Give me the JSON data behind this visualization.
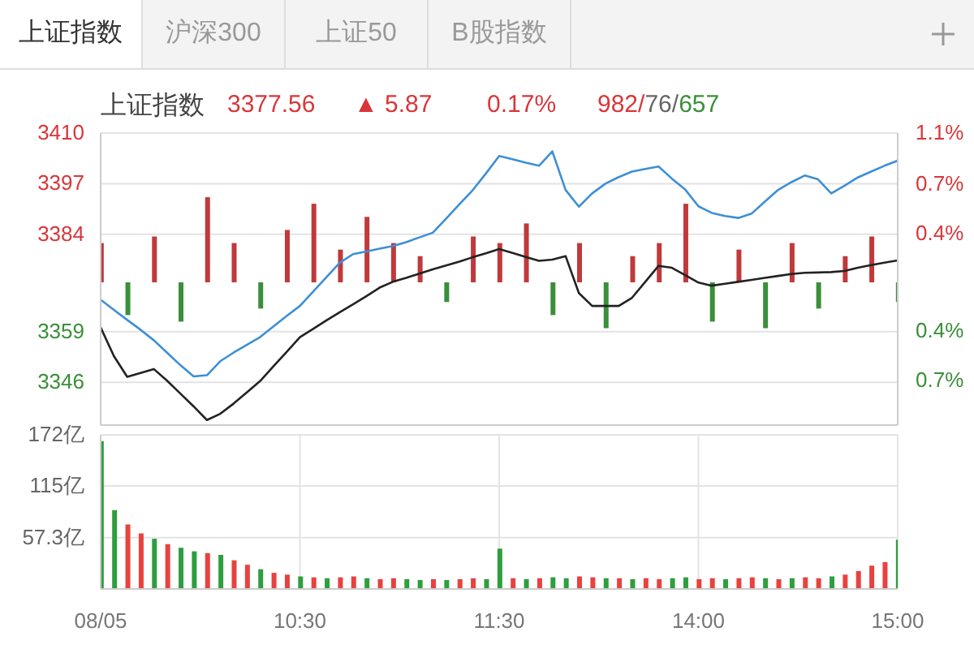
{
  "chart_data": [
    {
      "type": "line",
      "title": "上证指数",
      "annotations": [
        "上证指数",
        "沪深300",
        "上证50",
        "B股指数",
        "3377.56",
        "▲ 5.87",
        "0.17%",
        "982/76/657"
      ],
      "categories": [
        null,
        null,
        null,
        null,
        null,
        null,
        null,
        null,
        null,
        null,
        null,
        null,
        null,
        null,
        null,
        null,
        null,
        null,
        null,
        null,
        null,
        null,
        null,
        null,
        null,
        null,
        null,
        null,
        null,
        null,
        null,
        null,
        null,
        null,
        null,
        null,
        null,
        null,
        null,
        null,
        null,
        null,
        null,
        null,
        null,
        null,
        null,
        null,
        null,
        null,
        null,
        null,
        null,
        null,
        null,
        null,
        null,
        null,
        null,
        null,
        null
      ],
      "series": [
        {
          "type": "bar",
          "axis": "y2",
          "values": [
            0.3,
            null,
            -0.25,
            null,
            0.35,
            null,
            -0.3,
            null,
            0.65,
            null,
            0.3,
            null,
            -0.2,
            null,
            0.4,
            null,
            0.6,
            null,
            0.25,
            null,
            0.5,
            null,
            0.3,
            null,
            0.2,
            null,
            -0.15,
            null,
            0.35,
            null,
            0.3,
            null,
            0.45,
            null,
            -0.25,
            null,
            0.3,
            null,
            -0.35,
            null,
            0.2,
            null,
            0.3,
            null,
            0.6,
            null,
            -0.3,
            null,
            0.25,
            null,
            -0.35,
            null,
            0.3,
            null,
            -0.2,
            null,
            0.2,
            null,
            0.35,
            null,
            -0.15
          ],
          "colors": [
            "#c0393b",
            "#c0393b",
            "#3a8f3a",
            "#3a8f3a",
            "#c0393b",
            "#c0393b",
            "#3a8f3a",
            "#3a8f3a",
            "#c0393b",
            "#c0393b",
            "#c0393b",
            "#c0393b",
            "#3a8f3a",
            "#3a8f3a",
            "#c0393b",
            "#c0393b",
            "#c0393b",
            "#c0393b",
            "#c0393b",
            "#c0393b",
            "#c0393b",
            "#c0393b",
            "#c0393b",
            "#c0393b",
            "#c0393b",
            "#c0393b",
            "#3a8f3a",
            "#3a8f3a",
            "#c0393b",
            "#c0393b",
            "#c0393b",
            "#c0393b",
            "#c0393b",
            "#c0393b",
            "#3a8f3a",
            "#3a8f3a",
            "#c0393b",
            "#c0393b",
            "#3a8f3a",
            "#3a8f3a",
            "#c0393b",
            "#c0393b",
            "#c0393b",
            "#c0393b",
            "#c0393b",
            "#c0393b",
            "#3a8f3a",
            "#3a8f3a",
            "#c0393b",
            "#c0393b",
            "#3a8f3a",
            "#3a8f3a",
            "#c0393b",
            "#c0393b",
            "#3a8f3a",
            "#3a8f3a",
            "#c0393b",
            "#c0393b",
            "#c0393b",
            "#c0393b",
            "#3a8f3a"
          ]
        },
        {
          "color": "#3d8fd6",
          "values": [
            3367.2,
            3364.6,
            3362,
            3359.5,
            3356.8,
            3353.6,
            3350.4,
            3347.5,
            3347.8,
            3351.4,
            3353.6,
            3355.6,
            3357.6,
            3360.3,
            3363,
            3365.6,
            3369.3,
            3373,
            3376.7,
            3378.9,
            3379.6,
            3380.3,
            3381,
            3382,
            3383.2,
            3384.4,
            3388,
            3391.7,
            3395.3,
            3399.6,
            3404.1,
            3403.3,
            3402.4,
            3401.6,
            3405.3,
            3395.4,
            3391.1,
            3394.5,
            3397,
            3398.7,
            3400.1,
            3400.8,
            3401.4,
            3398.3,
            3395.5,
            3391.2,
            3389.5,
            3388.7,
            3388.2,
            3389.3,
            3392.4,
            3395.4,
            3397.4,
            3399.1,
            3398.1,
            3394.5,
            3396.5,
            3398.6,
            3400.1,
            3401.6,
            3402.9
          ]
        },
        {
          "color": "#222222",
          "values": [
            3360.1,
            3352.7,
            3347.4,
            3348.4,
            3349.4,
            3346.4,
            3343.1,
            3339.8,
            3336.3,
            3337.9,
            3340.5,
            3343.4,
            3346.3,
            3350.1,
            3353.8,
            3357.6,
            3359.7,
            3361.9,
            3364,
            3366,
            3368.1,
            3370.3,
            3371.8,
            3372.8,
            3373.9,
            3375,
            3376,
            3377,
            3378.1,
            3379.1,
            3380.2,
            3379.2,
            3378.2,
            3377.2,
            3377.5,
            3378.4,
            3368.9,
            3365.6,
            3365.6,
            3365.6,
            3367.7,
            3371.8,
            3375.9,
            3375.4,
            3373.5,
            3371.6,
            3370.8,
            3371.3,
            3371.8,
            3372.3,
            3372.8,
            3373.3,
            3373.8,
            3374.1,
            3374.2,
            3374.3,
            3374.6,
            3375.4,
            3376.1,
            3376.7,
            3377.3
          ]
        }
      ],
      "ylim": [
        3335,
        3410
      ],
      "yticks": [
        3346,
        3359,
        3384,
        3397,
        3410
      ],
      "y2lim": [
        -1.09,
        1.14
      ],
      "y2ticks": [
        {
          "value": 1.14,
          "label": "1.1%"
        },
        {
          "value": 0.75,
          "label": "0.7%"
        },
        {
          "value": 0.37,
          "label": "0.4%"
        },
        {
          "value": -0.37,
          "label": "0.4%"
        },
        {
          "value": -0.75,
          "label": "0.7%"
        }
      ],
      "grid": true,
      "tick_labels": "y"
    },
    {
      "type": "bar",
      "categories": [
        "08/05",
        null,
        null,
        null,
        null,
        null,
        null,
        null,
        null,
        null,
        null,
        null,
        null,
        null,
        null,
        "10:30",
        null,
        null,
        null,
        null,
        null,
        null,
        null,
        null,
        null,
        null,
        null,
        null,
        null,
        null,
        "11:30",
        null,
        null,
        null,
        null,
        null,
        null,
        null,
        null,
        null,
        null,
        null,
        null,
        null,
        null,
        "14:00",
        null,
        null,
        null,
        null,
        null,
        null,
        null,
        null,
        null,
        null,
        null,
        null,
        null,
        null,
        "15:00"
      ],
      "values": [
        165,
        88,
        72,
        62,
        56,
        50,
        46,
        42,
        40,
        38,
        32,
        27,
        22,
        18,
        16,
        14,
        13,
        12,
        13,
        14,
        12,
        11,
        12,
        11,
        10,
        11,
        10,
        11,
        12,
        11,
        45,
        12,
        11,
        12,
        13,
        12,
        14,
        13,
        12,
        12,
        11,
        12,
        11,
        12,
        13,
        11,
        12,
        11,
        12,
        13,
        12,
        11,
        12,
        13,
        12,
        14,
        16,
        20,
        26,
        30,
        55
      ],
      "colors": [
        "#2e9e3e",
        "#2e9e3e",
        "#e8423f",
        "#e8423f",
        "#2e9e3e",
        "#e8423f",
        "#2e9e3e",
        "#2e9e3e",
        "#e8423f",
        "#2e9e3e",
        "#e8423f",
        "#e8423f",
        "#2e9e3e",
        "#e8423f",
        "#e8423f",
        "#2e9e3e",
        "#e8423f",
        "#2e9e3e",
        "#e8423f",
        "#e8423f",
        "#2e9e3e",
        "#e8423f",
        "#e8423f",
        "#2e9e3e",
        "#2e9e3e",
        "#e8423f",
        "#2e9e3e",
        "#e8423f",
        "#e8423f",
        "#2e9e3e",
        "#2e9e3e",
        "#e8423f",
        "#2e9e3e",
        "#e8423f",
        "#2e9e3e",
        "#2e9e3e",
        "#e8423f",
        "#e8423f",
        "#2e9e3e",
        "#e8423f",
        "#2e9e3e",
        "#e8423f",
        "#e8423f",
        "#2e9e3e",
        "#2e9e3e",
        "#e8423f",
        "#e8423f",
        "#2e9e3e",
        "#e8423f",
        "#e8423f",
        "#2e9e3e",
        "#e8423f",
        "#2e9e3e",
        "#e8423f",
        "#e8423f",
        "#2e9e3e",
        "#e8423f",
        "#e8423f",
        "#e8423f",
        "#e8423f",
        "#2e9e3e"
      ],
      "ylim": [
        0,
        172
      ],
      "yticks": [
        {
          "value": 57.3,
          "label": "57.3亿"
        },
        {
          "value": 115,
          "label": "115亿"
        },
        {
          "value": 172,
          "label": "172亿"
        }
      ],
      "grid": true
    }
  ]
}
